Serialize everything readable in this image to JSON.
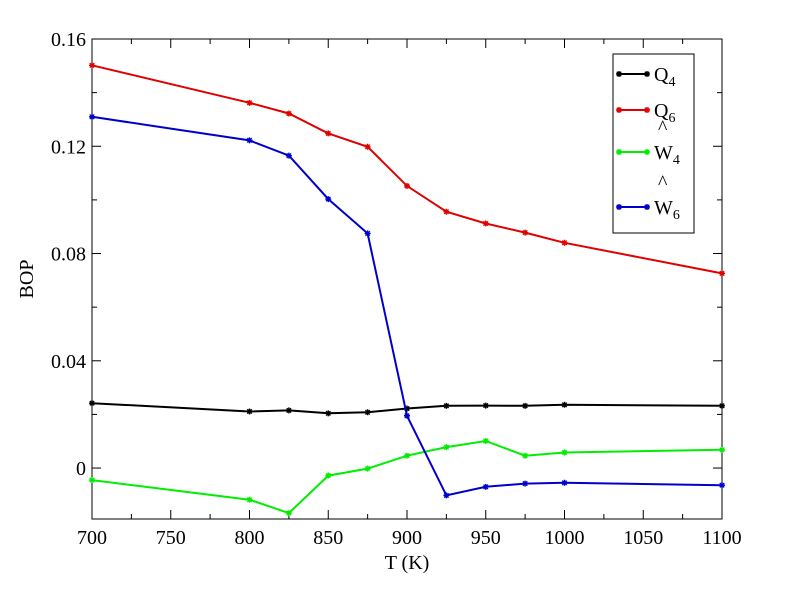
{
  "chart_data": {
    "type": "line",
    "xlabel": "T (K)",
    "ylabel": "BOP",
    "xlim": [
      700,
      1100
    ],
    "ylim": [
      -0.019,
      0.16
    ],
    "xticks": [
      700,
      750,
      800,
      850,
      900,
      950,
      1000,
      1050,
      1100
    ],
    "xtick_labels": [
      "700",
      "750",
      "800",
      "850",
      "900",
      "950",
      "1000",
      "1050",
      "1100"
    ],
    "yticks": [
      0,
      0.04,
      0.08,
      0.12,
      0.16
    ],
    "ytick_labels": [
      "0",
      "0.04",
      "0.08",
      "0.12",
      "0.16"
    ],
    "grid": false,
    "legend_position": "top-right",
    "series": [
      {
        "name": "Q4",
        "legend_main": "Q",
        "legend_sub": "4",
        "legend_hat": false,
        "color": "#000000",
        "x": [
          700,
          800,
          825,
          850,
          875,
          900,
          925,
          950,
          975,
          1000,
          1100
        ],
        "y": [
          0.0242,
          0.0211,
          0.0215,
          0.0204,
          0.0208,
          0.0222,
          0.0232,
          0.0233,
          0.0232,
          0.0236,
          0.0232
        ]
      },
      {
        "name": "Q6",
        "legend_main": "Q",
        "legend_sub": "6",
        "legend_hat": false,
        "color": "#e00000",
        "x": [
          700,
          800,
          825,
          850,
          875,
          900,
          925,
          950,
          975,
          1000,
          1100
        ],
        "y": [
          0.1502,
          0.1362,
          0.1322,
          0.1248,
          0.1198,
          0.1052,
          0.0956,
          0.0912,
          0.0878,
          0.084,
          0.0726
        ]
      },
      {
        "name": "W4",
        "legend_main": "W",
        "legend_sub": "4",
        "legend_hat": true,
        "color": "#00ee00",
        "x": [
          700,
          800,
          825,
          850,
          875,
          900,
          925,
          950,
          975,
          1000,
          1100
        ],
        "y": [
          -0.0045,
          -0.0118,
          -0.0168,
          -0.0028,
          -0.0002,
          0.0046,
          0.0078,
          0.0101,
          0.0046,
          0.0058,
          0.0068
        ]
      },
      {
        "name": "W6",
        "legend_main": "W",
        "legend_sub": "6",
        "legend_hat": true,
        "color": "#0000cc",
        "x": [
          700,
          800,
          825,
          850,
          875,
          900,
          925,
          950,
          975,
          1000,
          1100
        ],
        "y": [
          0.131,
          0.1222,
          0.1165,
          0.1003,
          0.0875,
          0.0195,
          -0.0102,
          -0.007,
          -0.0058,
          -0.0055,
          -0.0064
        ]
      }
    ]
  }
}
